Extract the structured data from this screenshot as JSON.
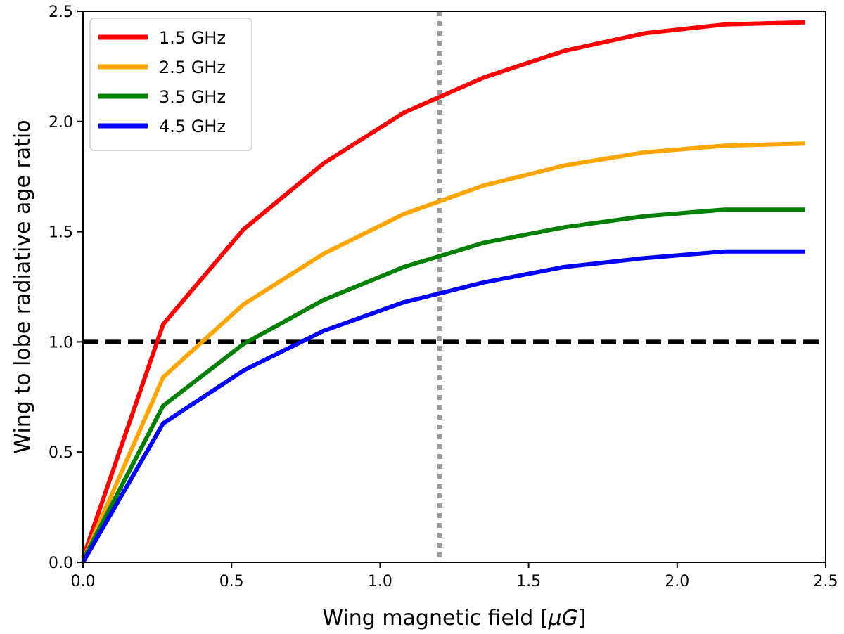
{
  "chart_data": {
    "type": "line",
    "title": "",
    "xlabel_prefix": "Wing magnetic field [",
    "xlabel_symbol": "μ",
    "xlabel_unit": "G",
    "xlabel_suffix": "]",
    "ylabel": "Wing to lobe radiative age ratio",
    "xlim": [
      0,
      2.5
    ],
    "ylim": [
      0,
      2.5
    ],
    "xticks": [
      0.0,
      0.5,
      1.0,
      1.5,
      2.0,
      2.5
    ],
    "yticks": [
      0.0,
      0.5,
      1.0,
      1.5,
      2.0,
      2.5
    ],
    "xtick_labels": [
      "0.0",
      "0.5",
      "1.0",
      "1.5",
      "2.0",
      "2.5"
    ],
    "ytick_labels": [
      "0.0",
      "0.5",
      "1.0",
      "1.5",
      "2.0",
      "2.5"
    ],
    "grid": false,
    "legend_position": "top-left",
    "x": [
      0.0,
      0.27,
      0.54,
      0.81,
      1.08,
      1.35,
      1.62,
      1.89,
      2.16,
      2.43
    ],
    "series": [
      {
        "name": "1.5 GHz",
        "color": "#ff0000",
        "values": [
          0.02,
          1.08,
          1.51,
          1.81,
          2.04,
          2.2,
          2.32,
          2.4,
          2.44,
          2.45
        ]
      },
      {
        "name": "2.5 GHz",
        "color": "#ffa500",
        "values": [
          0.01,
          0.84,
          1.17,
          1.4,
          1.58,
          1.71,
          1.8,
          1.86,
          1.89,
          1.9
        ]
      },
      {
        "name": "3.5 GHz",
        "color": "#008000",
        "values": [
          0.01,
          0.71,
          0.99,
          1.19,
          1.34,
          1.45,
          1.52,
          1.57,
          1.6,
          1.6
        ]
      },
      {
        "name": "4.5 GHz",
        "color": "#0000ff",
        "values": [
          0.0,
          0.63,
          0.87,
          1.05,
          1.18,
          1.27,
          1.34,
          1.38,
          1.41,
          1.41
        ]
      }
    ],
    "reference_lines": [
      {
        "orientation": "horizontal",
        "value": 1.0,
        "style": "dashed",
        "color": "#000000"
      },
      {
        "orientation": "vertical",
        "value": 1.2,
        "style": "dotted",
        "color": "#999999"
      }
    ]
  }
}
